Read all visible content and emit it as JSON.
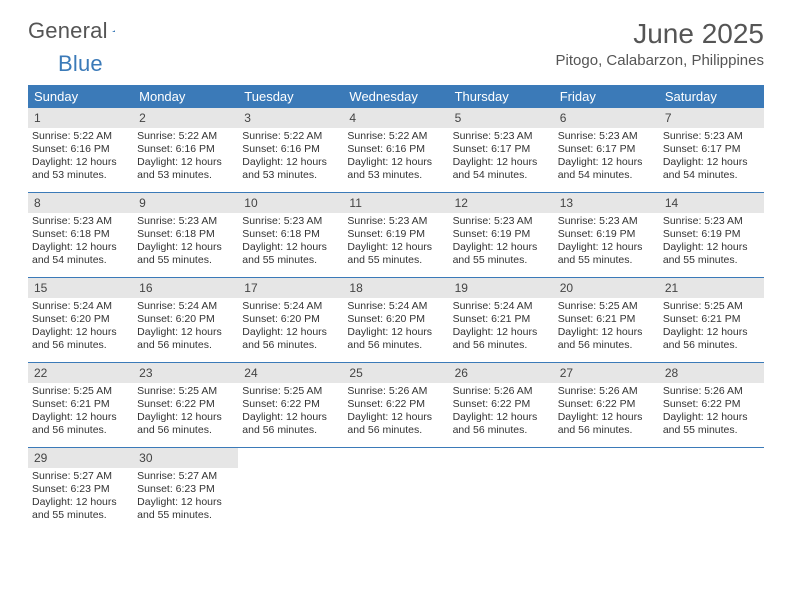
{
  "brand": {
    "text1": "General",
    "text2": "Blue"
  },
  "header": {
    "title": "June 2025",
    "location": "Pitogo, Calabarzon, Philippines"
  },
  "colors": {
    "header_bg": "#3b7ab8",
    "header_text": "#ffffff",
    "daynum_bg": "#e6e6e6",
    "row_border": "#3b7ab8",
    "page_bg": "#ffffff",
    "text": "#333333"
  },
  "table": {
    "columns": [
      "Sunday",
      "Monday",
      "Tuesday",
      "Wednesday",
      "Thursday",
      "Friday",
      "Saturday"
    ],
    "weeks": [
      [
        {
          "n": "1",
          "sr": "Sunrise: 5:22 AM",
          "ss": "Sunset: 6:16 PM",
          "d1": "Daylight: 12 hours",
          "d2": "and 53 minutes."
        },
        {
          "n": "2",
          "sr": "Sunrise: 5:22 AM",
          "ss": "Sunset: 6:16 PM",
          "d1": "Daylight: 12 hours",
          "d2": "and 53 minutes."
        },
        {
          "n": "3",
          "sr": "Sunrise: 5:22 AM",
          "ss": "Sunset: 6:16 PM",
          "d1": "Daylight: 12 hours",
          "d2": "and 53 minutes."
        },
        {
          "n": "4",
          "sr": "Sunrise: 5:22 AM",
          "ss": "Sunset: 6:16 PM",
          "d1": "Daylight: 12 hours",
          "d2": "and 53 minutes."
        },
        {
          "n": "5",
          "sr": "Sunrise: 5:23 AM",
          "ss": "Sunset: 6:17 PM",
          "d1": "Daylight: 12 hours",
          "d2": "and 54 minutes."
        },
        {
          "n": "6",
          "sr": "Sunrise: 5:23 AM",
          "ss": "Sunset: 6:17 PM",
          "d1": "Daylight: 12 hours",
          "d2": "and 54 minutes."
        },
        {
          "n": "7",
          "sr": "Sunrise: 5:23 AM",
          "ss": "Sunset: 6:17 PM",
          "d1": "Daylight: 12 hours",
          "d2": "and 54 minutes."
        }
      ],
      [
        {
          "n": "8",
          "sr": "Sunrise: 5:23 AM",
          "ss": "Sunset: 6:18 PM",
          "d1": "Daylight: 12 hours",
          "d2": "and 54 minutes."
        },
        {
          "n": "9",
          "sr": "Sunrise: 5:23 AM",
          "ss": "Sunset: 6:18 PM",
          "d1": "Daylight: 12 hours",
          "d2": "and 55 minutes."
        },
        {
          "n": "10",
          "sr": "Sunrise: 5:23 AM",
          "ss": "Sunset: 6:18 PM",
          "d1": "Daylight: 12 hours",
          "d2": "and 55 minutes."
        },
        {
          "n": "11",
          "sr": "Sunrise: 5:23 AM",
          "ss": "Sunset: 6:19 PM",
          "d1": "Daylight: 12 hours",
          "d2": "and 55 minutes."
        },
        {
          "n": "12",
          "sr": "Sunrise: 5:23 AM",
          "ss": "Sunset: 6:19 PM",
          "d1": "Daylight: 12 hours",
          "d2": "and 55 minutes."
        },
        {
          "n": "13",
          "sr": "Sunrise: 5:23 AM",
          "ss": "Sunset: 6:19 PM",
          "d1": "Daylight: 12 hours",
          "d2": "and 55 minutes."
        },
        {
          "n": "14",
          "sr": "Sunrise: 5:23 AM",
          "ss": "Sunset: 6:19 PM",
          "d1": "Daylight: 12 hours",
          "d2": "and 55 minutes."
        }
      ],
      [
        {
          "n": "15",
          "sr": "Sunrise: 5:24 AM",
          "ss": "Sunset: 6:20 PM",
          "d1": "Daylight: 12 hours",
          "d2": "and 56 minutes."
        },
        {
          "n": "16",
          "sr": "Sunrise: 5:24 AM",
          "ss": "Sunset: 6:20 PM",
          "d1": "Daylight: 12 hours",
          "d2": "and 56 minutes."
        },
        {
          "n": "17",
          "sr": "Sunrise: 5:24 AM",
          "ss": "Sunset: 6:20 PM",
          "d1": "Daylight: 12 hours",
          "d2": "and 56 minutes."
        },
        {
          "n": "18",
          "sr": "Sunrise: 5:24 AM",
          "ss": "Sunset: 6:20 PM",
          "d1": "Daylight: 12 hours",
          "d2": "and 56 minutes."
        },
        {
          "n": "19",
          "sr": "Sunrise: 5:24 AM",
          "ss": "Sunset: 6:21 PM",
          "d1": "Daylight: 12 hours",
          "d2": "and 56 minutes."
        },
        {
          "n": "20",
          "sr": "Sunrise: 5:25 AM",
          "ss": "Sunset: 6:21 PM",
          "d1": "Daylight: 12 hours",
          "d2": "and 56 minutes."
        },
        {
          "n": "21",
          "sr": "Sunrise: 5:25 AM",
          "ss": "Sunset: 6:21 PM",
          "d1": "Daylight: 12 hours",
          "d2": "and 56 minutes."
        }
      ],
      [
        {
          "n": "22",
          "sr": "Sunrise: 5:25 AM",
          "ss": "Sunset: 6:21 PM",
          "d1": "Daylight: 12 hours",
          "d2": "and 56 minutes."
        },
        {
          "n": "23",
          "sr": "Sunrise: 5:25 AM",
          "ss": "Sunset: 6:22 PM",
          "d1": "Daylight: 12 hours",
          "d2": "and 56 minutes."
        },
        {
          "n": "24",
          "sr": "Sunrise: 5:25 AM",
          "ss": "Sunset: 6:22 PM",
          "d1": "Daylight: 12 hours",
          "d2": "and 56 minutes."
        },
        {
          "n": "25",
          "sr": "Sunrise: 5:26 AM",
          "ss": "Sunset: 6:22 PM",
          "d1": "Daylight: 12 hours",
          "d2": "and 56 minutes."
        },
        {
          "n": "26",
          "sr": "Sunrise: 5:26 AM",
          "ss": "Sunset: 6:22 PM",
          "d1": "Daylight: 12 hours",
          "d2": "and 56 minutes."
        },
        {
          "n": "27",
          "sr": "Sunrise: 5:26 AM",
          "ss": "Sunset: 6:22 PM",
          "d1": "Daylight: 12 hours",
          "d2": "and 56 minutes."
        },
        {
          "n": "28",
          "sr": "Sunrise: 5:26 AM",
          "ss": "Sunset: 6:22 PM",
          "d1": "Daylight: 12 hours",
          "d2": "and 55 minutes."
        }
      ],
      [
        {
          "n": "29",
          "sr": "Sunrise: 5:27 AM",
          "ss": "Sunset: 6:23 PM",
          "d1": "Daylight: 12 hours",
          "d2": "and 55 minutes."
        },
        {
          "n": "30",
          "sr": "Sunrise: 5:27 AM",
          "ss": "Sunset: 6:23 PM",
          "d1": "Daylight: 12 hours",
          "d2": "and 55 minutes."
        },
        null,
        null,
        null,
        null,
        null
      ]
    ]
  }
}
